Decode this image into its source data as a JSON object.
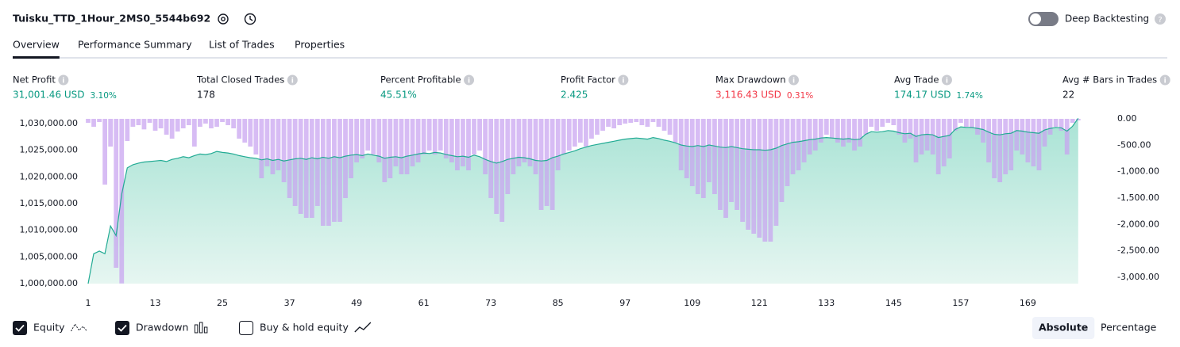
{
  "header": {
    "title": "Tuisku_TTD_1Hour_2MS0_5544b692",
    "deep_backtesting_label": "Deep Backtesting",
    "deep_backtesting": false
  },
  "tabs": [
    "Overview",
    "Performance Summary",
    "List of Trades",
    "Properties"
  ],
  "active_tab": 0,
  "metrics": [
    {
      "label": "Net Profit",
      "value": "31,001.46 USD",
      "sub": "3.10%",
      "color": "#089981"
    },
    {
      "label": "Total Closed Trades",
      "value": "178",
      "color": "#131722"
    },
    {
      "label": "Percent Profitable",
      "value": "45.51%",
      "color": "#089981"
    },
    {
      "label": "Profit Factor",
      "value": "2.425",
      "color": "#089981"
    },
    {
      "label": "Max Drawdown",
      "value": "3,116.43 USD",
      "sub": "0.31%",
      "color": "#f23645"
    },
    {
      "label": "Avg Trade",
      "value": "174.17 USD",
      "sub": "1.74%",
      "color": "#089981"
    },
    {
      "label": "Avg # Bars in Trades",
      "value": "22",
      "color": "#131722"
    }
  ],
  "chart_data": {
    "type": "equity-drawdown",
    "x": [
      1,
      2,
      3,
      4,
      5,
      6,
      7,
      8,
      9,
      10,
      11,
      12,
      13,
      14,
      15,
      16,
      17,
      18,
      19,
      20,
      21,
      22,
      23,
      24,
      25,
      26,
      27,
      28,
      29,
      30,
      31,
      32,
      33,
      34,
      35,
      36,
      37,
      38,
      39,
      40,
      41,
      42,
      43,
      44,
      45,
      46,
      47,
      48,
      49,
      50,
      51,
      52,
      53,
      54,
      55,
      56,
      57,
      58,
      59,
      60,
      61,
      62,
      63,
      64,
      65,
      66,
      67,
      68,
      69,
      70,
      71,
      72,
      73,
      74,
      75,
      76,
      77,
      78,
      79,
      80,
      81,
      82,
      83,
      84,
      85,
      86,
      87,
      88,
      89,
      90,
      91,
      92,
      93,
      94,
      95,
      96,
      97,
      98,
      99,
      100,
      101,
      102,
      103,
      104,
      105,
      106,
      107,
      108,
      109,
      110,
      111,
      112,
      113,
      114,
      115,
      116,
      117,
      118,
      119,
      120,
      121,
      122,
      123,
      124,
      125,
      126,
      127,
      128,
      129,
      130,
      131,
      132,
      133,
      134,
      135,
      136,
      137,
      138,
      139,
      140,
      141,
      142,
      143,
      144,
      145,
      146,
      147,
      148,
      149,
      150,
      151,
      152,
      153,
      154,
      155,
      156,
      157,
      158,
      159,
      160,
      161,
      162,
      163,
      164,
      165,
      166,
      167,
      168,
      169,
      170,
      171,
      172,
      173,
      174,
      175,
      176,
      177,
      178
    ],
    "xlim": [
      1,
      183
    ],
    "xticks": [
      1,
      13,
      25,
      37,
      49,
      61,
      73,
      85,
      97,
      109,
      121,
      133,
      145,
      157,
      169
    ],
    "ylim": [
      1000000,
      1030900
    ],
    "yticks": [
      {
        "value": 1000000,
        "label": "1,000,000.00"
      },
      {
        "value": 1005000,
        "label": "1,005,000.00"
      },
      {
        "value": 1010000,
        "label": "1,010,000.00"
      },
      {
        "value": 1015000,
        "label": "1,015,000.00"
      },
      {
        "value": 1020000,
        "label": "1,020,000.00"
      },
      {
        "value": 1025000,
        "label": "1,025,000.00"
      },
      {
        "value": 1030000,
        "label": "1,030,000.00"
      }
    ],
    "y2lim": [
      -3120,
      0
    ],
    "y2ticks": [
      {
        "value": 0,
        "label": "0.00"
      },
      {
        "value": -500,
        "label": "-500.00"
      },
      {
        "value": -1000,
        "label": "-1,000.00"
      },
      {
        "value": -1500,
        "label": "-1,500.00"
      },
      {
        "value": -2000,
        "label": "-2,000.00"
      },
      {
        "value": -2500,
        "label": "-2,500.00"
      },
      {
        "value": -3000,
        "label": "-3,000.00"
      }
    ],
    "series": [
      {
        "name": "Equity",
        "color": "#22ab94",
        "checked": true,
        "values": [
          1000000,
          1005600,
          1006100,
          1005600,
          1010800,
          1009000,
          1016800,
          1021700,
          1022300,
          1022600,
          1022800,
          1022900,
          1023000,
          1023100,
          1022900,
          1023300,
          1023500,
          1023800,
          1023600,
          1024000,
          1024300,
          1024200,
          1024400,
          1024800,
          1024600,
          1024500,
          1024300,
          1024000,
          1023800,
          1023600,
          1023500,
          1023200,
          1023400,
          1023100,
          1023300,
          1023000,
          1023200,
          1023400,
          1023500,
          1023300,
          1023600,
          1023400,
          1023700,
          1023500,
          1023800,
          1023600,
          1023900,
          1024100,
          1024200,
          1024000,
          1024300,
          1024100,
          1023900,
          1023500,
          1023700,
          1023800,
          1023600,
          1023900,
          1024100,
          1024300,
          1024500,
          1024400,
          1024600,
          1024500,
          1024200,
          1024000,
          1023800,
          1023900,
          1023700,
          1024100,
          1023800,
          1023300,
          1022900,
          1022600,
          1022900,
          1023300,
          1023500,
          1023700,
          1023600,
          1023400,
          1023100,
          1023000,
          1023100,
          1023600,
          1023900,
          1024300,
          1024600,
          1024900,
          1025300,
          1025600,
          1025900,
          1026100,
          1026300,
          1026500,
          1026700,
          1026900,
          1027100,
          1027200,
          1027300,
          1027200,
          1027100,
          1027400,
          1027200,
          1026900,
          1026700,
          1026400,
          1026000,
          1025800,
          1025700,
          1025900,
          1025700,
          1026000,
          1025800,
          1025600,
          1025500,
          1025700,
          1025500,
          1025300,
          1025200,
          1025100,
          1025100,
          1025000,
          1025100,
          1025400,
          1025900,
          1026200,
          1026500,
          1026600,
          1026800,
          1027000,
          1027100,
          1027300,
          1027400,
          1027300,
          1027200,
          1027100,
          1027200,
          1027000,
          1027100,
          1028000,
          1028500,
          1028400,
          1028500,
          1028700,
          1028600,
          1028300,
          1028100,
          1028200,
          1027600,
          1027900,
          1028000,
          1027900,
          1027400,
          1027600,
          1027800,
          1028900,
          1029400,
          1029300,
          1029300,
          1029100,
          1028900,
          1028400,
          1028000,
          1027900,
          1028100,
          1028200,
          1028700,
          1028600,
          1028400,
          1028300,
          1028200,
          1028800,
          1029100,
          1029300,
          1029200,
          1028600,
          1029500,
          1031001.46
        ]
      },
      {
        "name": "Drawdown",
        "color": "#c8a2f0",
        "checked": true,
        "axis": "y2",
        "values": [
          -75,
          -150,
          -60,
          -1245,
          -525,
          -2820,
          -3116.43,
          -420,
          -150,
          -120,
          -200,
          -75,
          -225,
          -180,
          -300,
          -375,
          -240,
          -180,
          -120,
          -525,
          -150,
          -90,
          -180,
          -150,
          -60,
          -120,
          -180,
          -375,
          -450,
          -525,
          -675,
          -1125,
          -900,
          -1050,
          -975,
          -1200,
          -1500,
          -1650,
          -1800,
          -1875,
          -1875,
          -1650,
          -2025,
          -2025,
          -1950,
          -1950,
          -1500,
          -1125,
          -825,
          -750,
          -600,
          -675,
          -825,
          -1200,
          -1125,
          -900,
          -1050,
          -1050,
          -900,
          -825,
          -675,
          -600,
          -675,
          -600,
          -750,
          -825,
          -975,
          -900,
          -975,
          -675,
          -600,
          -1050,
          -1500,
          -1800,
          -1950,
          -1425,
          -1050,
          -900,
          -825,
          -900,
          -1050,
          -1725,
          -1650,
          -1725,
          -975,
          -675,
          -600,
          -525,
          -450,
          -525,
          -375,
          -300,
          -225,
          -150,
          -180,
          -120,
          -90,
          -75,
          -60,
          -120,
          -150,
          -60,
          -150,
          -225,
          -300,
          -450,
          -975,
          -1125,
          -1275,
          -1425,
          -1500,
          -1200,
          -1425,
          -1725,
          -1875,
          -1575,
          -1725,
          -1950,
          -2100,
          -2175,
          -2250,
          -2325,
          -2325,
          -2025,
          -1575,
          -1275,
          -1050,
          -975,
          -825,
          -675,
          -600,
          -450,
          -300,
          -375,
          -450,
          -525,
          -450,
          -600,
          -525,
          -300,
          -150,
          -225,
          -150,
          -75,
          -120,
          -300,
          -450,
          -375,
          -825,
          -675,
          -600,
          -675,
          -1050,
          -900,
          -750,
          -225,
          -75,
          -150,
          -180,
          -300,
          -450,
          -825,
          -1125,
          -1200,
          -1050,
          -975,
          -600,
          -675,
          -825,
          -900,
          -975,
          -525,
          -300,
          -150,
          -225,
          -675,
          -75,
          -30
        ]
      }
    ]
  },
  "toggles": [
    {
      "label": "Buy & hold equity",
      "checked": false
    }
  ],
  "modes": [
    "Absolute",
    "Percentage"
  ],
  "active_mode": 0
}
